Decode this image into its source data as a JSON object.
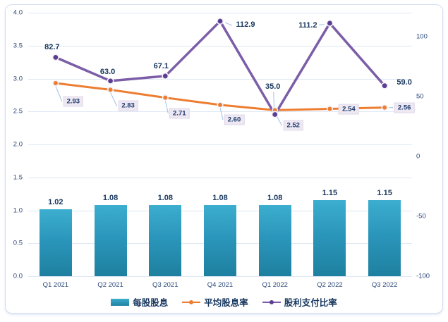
{
  "chart_data": {
    "type": "combo",
    "categories": [
      "Q1 2021",
      "Q2 2021",
      "Q3 2021",
      "Q4 2021",
      "Q1 2022",
      "Q2 2022",
      "Q3 2022"
    ],
    "series": [
      {
        "name": "每股股息",
        "type": "bar",
        "axis": "left",
        "values": [
          1.02,
          1.08,
          1.08,
          1.08,
          1.08,
          1.15,
          1.15
        ],
        "labels": [
          "1.02",
          "1.08",
          "1.08",
          "1.08",
          "1.08",
          "1.15",
          "1.15"
        ],
        "color": "#2E9FC3"
      },
      {
        "name": "平均股息率",
        "type": "line",
        "axis": "left",
        "values": [
          2.93,
          2.83,
          2.71,
          2.6,
          2.52,
          2.54,
          2.56
        ],
        "labels": [
          "2.93",
          "2.83",
          "2.71",
          "2.60",
          "2.52",
          "2.54",
          "2.56"
        ],
        "color": "#ED7D31",
        "marker_color": "#ED7D31",
        "label_style": "box"
      },
      {
        "name": "股利支付比率",
        "type": "line",
        "axis": "right",
        "values": [
          82.7,
          63.0,
          67.1,
          112.9,
          35.0,
          111.2,
          59.0
        ],
        "labels": [
          "82.7",
          "63.0",
          "67.1",
          "112.9",
          "35.0",
          "111.2",
          "59.0"
        ],
        "color": "#7B5EA7",
        "marker_color": "#5B3E8F",
        "label_style": "bold"
      }
    ],
    "left_axis": {
      "min": 0,
      "max": 4,
      "tick_step": 0.5,
      "tick_labels": [
        "4.0",
        "3.5",
        "3.0",
        "2.5",
        "2.0",
        "1.5",
        "1.0",
        "0.5",
        "0.0"
      ]
    },
    "right_axis": {
      "min": -100,
      "max": 120,
      "tick_values": [
        100,
        50,
        0,
        -50,
        -100
      ],
      "tick_labels": [
        "100",
        "50",
        "0",
        "-50",
        "-100"
      ]
    },
    "grid": true,
    "legend_position": "bottom",
    "title": ""
  },
  "colors": {
    "bar_top": "#3CAECF",
    "bar_bottom": "#1E80A0",
    "orange_line": "#ED7D31",
    "purple_line": "#7B5EA7",
    "purple_marker": "#5B3E8F",
    "data_label": "#17375E",
    "axis_label": "#2B4878",
    "gridline": "#DDE7F3",
    "callout_box_bg": "#EDE8F2",
    "leader_line": "#9FC0E4",
    "frame_border": "#D5DFEE"
  }
}
